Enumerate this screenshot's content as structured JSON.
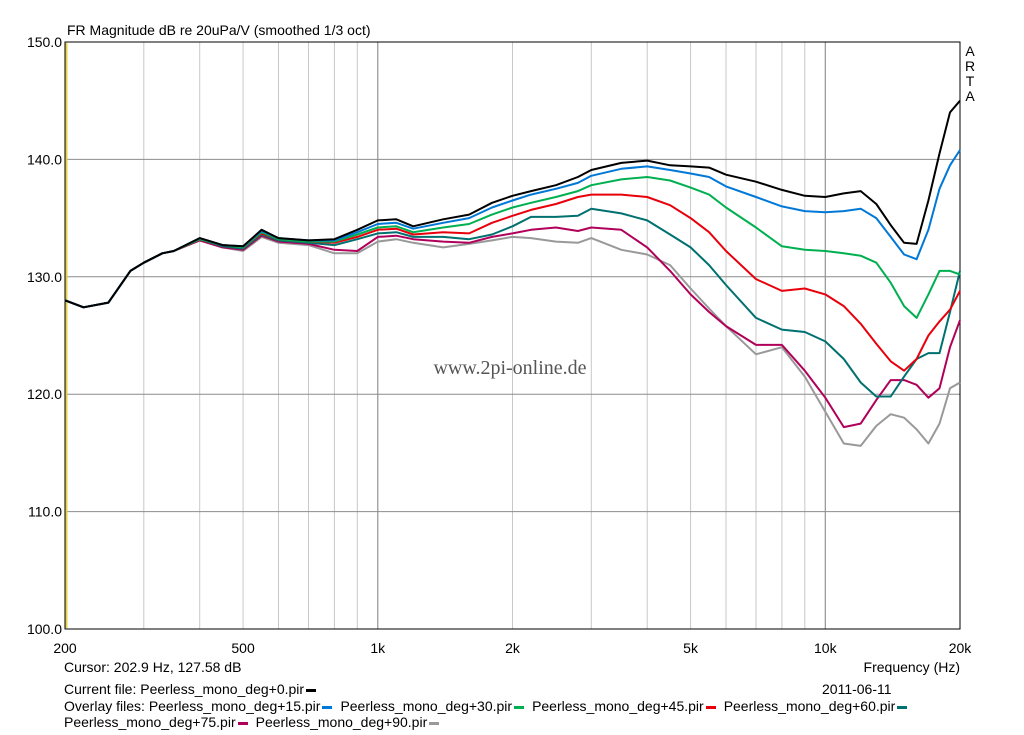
{
  "chart_data": {
    "type": "line",
    "title": "FR Magnitude dB re 20uPa/V (smoothed 1/3 oct)",
    "xlabel": "Frequency (Hz)",
    "ylabel": "",
    "x_scale": "log",
    "xlim": [
      200,
      20000
    ],
    "ylim": [
      100,
      150
    ],
    "grid": true,
    "watermark": "www.2pi-online.de",
    "brand": [
      "A",
      "R",
      "T",
      "A"
    ],
    "y_ticks": [
      "150.0",
      "140.0",
      "130.0",
      "120.0",
      "110.0",
      "100.0"
    ],
    "y_tick_values": [
      150,
      140,
      130,
      120,
      110,
      100
    ],
    "x_ticks": [
      "200",
      "500",
      "1k",
      "2k",
      "5k",
      "10k",
      "20k"
    ],
    "x_tick_values": [
      200,
      500,
      1000,
      2000,
      5000,
      10000,
      20000
    ],
    "x": [
      200,
      220,
      250,
      280,
      300,
      330,
      350,
      400,
      450,
      500,
      550,
      600,
      700,
      800,
      900,
      1000,
      1100,
      1200,
      1400,
      1600,
      1800,
      2000,
      2200,
      2500,
      2800,
      3000,
      3500,
      4000,
      4500,
      5000,
      5500,
      6000,
      7000,
      8000,
      9000,
      10000,
      11000,
      12000,
      13000,
      14000,
      15000,
      16000,
      17000,
      18000,
      19000,
      20000
    ],
    "series": [
      {
        "name": "Peerless_mono_deg+0.pir",
        "color": "#000000",
        "values": [
          128.0,
          127.4,
          127.8,
          130.5,
          131.2,
          132.0,
          132.2,
          133.3,
          132.7,
          132.6,
          134.0,
          133.3,
          133.1,
          133.2,
          134.0,
          134.8,
          134.9,
          134.3,
          134.9,
          135.3,
          136.3,
          136.9,
          137.3,
          137.8,
          138.5,
          139.1,
          139.7,
          139.9,
          139.5,
          139.4,
          139.3,
          138.7,
          138.1,
          137.4,
          136.9,
          136.8,
          137.1,
          137.3,
          136.2,
          134.4,
          132.9,
          132.8,
          136.5,
          140.5,
          144.0,
          145.0
        ]
      },
      {
        "name": "Peerless_mono_deg+15.pir",
        "color": "#0078d7",
        "values": [
          128.0,
          127.4,
          127.8,
          130.5,
          131.2,
          132.0,
          132.2,
          133.3,
          132.7,
          132.6,
          133.9,
          133.3,
          133.1,
          133.1,
          133.8,
          134.5,
          134.6,
          134.1,
          134.6,
          135.0,
          135.9,
          136.5,
          137.0,
          137.5,
          138.0,
          138.6,
          139.2,
          139.4,
          139.1,
          138.8,
          138.5,
          137.7,
          136.8,
          136.0,
          135.6,
          135.5,
          135.6,
          135.8,
          135.0,
          133.4,
          131.9,
          131.5,
          134.0,
          137.5,
          139.5,
          140.8
        ]
      },
      {
        "name": "Peerless_mono_deg+30.pir",
        "color": "#00b050",
        "values": [
          128.0,
          127.4,
          127.8,
          130.5,
          131.2,
          132.0,
          132.2,
          133.2,
          132.7,
          132.5,
          133.8,
          133.2,
          133.0,
          133.0,
          133.6,
          134.2,
          134.3,
          133.8,
          134.2,
          134.5,
          135.3,
          135.9,
          136.3,
          136.8,
          137.3,
          137.8,
          138.3,
          138.5,
          138.2,
          137.6,
          137.0,
          135.9,
          134.2,
          132.6,
          132.3,
          132.2,
          132.0,
          131.8,
          131.2,
          129.5,
          127.5,
          126.5,
          128.5,
          130.5,
          130.5,
          130.2
        ]
      },
      {
        "name": "Peerless_mono_deg+45.pir",
        "color": "#e8000b",
        "values": [
          128.0,
          127.4,
          127.8,
          130.5,
          131.2,
          132.0,
          132.2,
          133.2,
          132.7,
          132.5,
          133.7,
          133.2,
          133.0,
          132.9,
          133.4,
          134.0,
          134.1,
          133.6,
          133.8,
          133.7,
          134.6,
          135.2,
          135.7,
          136.2,
          136.8,
          137.0,
          137.0,
          136.8,
          136.1,
          135.0,
          133.8,
          132.2,
          129.8,
          128.8,
          129.0,
          128.5,
          127.5,
          126.0,
          124.3,
          122.8,
          122.0,
          123.0,
          125.0,
          126.2,
          127.2,
          128.8
        ]
      },
      {
        "name": "Peerless_mono_deg+60.pir",
        "color": "#007070",
        "values": [
          128.0,
          127.4,
          127.8,
          130.5,
          131.2,
          132.0,
          132.2,
          133.2,
          132.6,
          132.4,
          133.6,
          133.1,
          132.9,
          132.7,
          133.2,
          133.7,
          133.8,
          133.4,
          133.4,
          133.2,
          133.6,
          134.3,
          135.1,
          135.1,
          135.2,
          135.8,
          135.4,
          134.8,
          133.6,
          132.5,
          131.0,
          129.3,
          126.5,
          125.5,
          125.3,
          124.5,
          123.0,
          121.0,
          119.8,
          119.8,
          121.5,
          123.0,
          123.5,
          123.5,
          127.0,
          130.5
        ]
      },
      {
        "name": "Peerless_mono_deg+75.pir",
        "color": "#b0005a",
        "values": [
          128.0,
          127.4,
          127.8,
          130.5,
          131.2,
          132.0,
          132.2,
          133.1,
          132.5,
          132.3,
          133.5,
          133.0,
          132.8,
          132.3,
          132.2,
          133.4,
          133.5,
          133.2,
          133.0,
          132.9,
          133.4,
          133.7,
          134.0,
          134.2,
          133.9,
          134.2,
          134.0,
          132.5,
          130.5,
          128.5,
          127.0,
          125.8,
          124.2,
          124.2,
          122.0,
          119.7,
          117.2,
          117.5,
          119.5,
          121.2,
          121.2,
          120.8,
          119.7,
          120.5,
          124.0,
          126.3
        ]
      },
      {
        "name": "Peerless_mono_deg+90.pir",
        "color": "#999999",
        "values": [
          128.0,
          127.4,
          127.8,
          130.5,
          131.2,
          132.0,
          132.2,
          133.1,
          132.5,
          132.2,
          133.4,
          132.9,
          132.7,
          132.0,
          132.0,
          133.0,
          133.2,
          132.9,
          132.5,
          132.8,
          133.1,
          133.4,
          133.3,
          133.0,
          132.9,
          133.3,
          132.3,
          131.9,
          131.0,
          129.0,
          127.3,
          125.8,
          123.4,
          124.0,
          121.5,
          118.5,
          115.8,
          115.6,
          117.3,
          118.3,
          118.0,
          117.0,
          115.8,
          117.5,
          120.5,
          121.0
        ]
      }
    ]
  },
  "footer": {
    "cursor": "Cursor: 202.9 Hz, 127.58 dB",
    "current_file": "Current file: Peerless_mono_deg+0.pir",
    "date": "2011-06-11",
    "overlay_label": "Overlay files:",
    "overlay_files": [
      "Peerless_mono_deg+15.pir",
      "Peerless_mono_deg+30.pir",
      "Peerless_mono_deg+45.pir",
      "Peerless_mono_deg+60.pir",
      "Peerless_mono_deg+75.pir",
      "Peerless_mono_deg+90.pir"
    ],
    "overlay_colors": [
      "#0078d7",
      "#00b050",
      "#e8000b",
      "#007070",
      "#b0005a",
      "#999999"
    ],
    "current_color": "#000000"
  }
}
